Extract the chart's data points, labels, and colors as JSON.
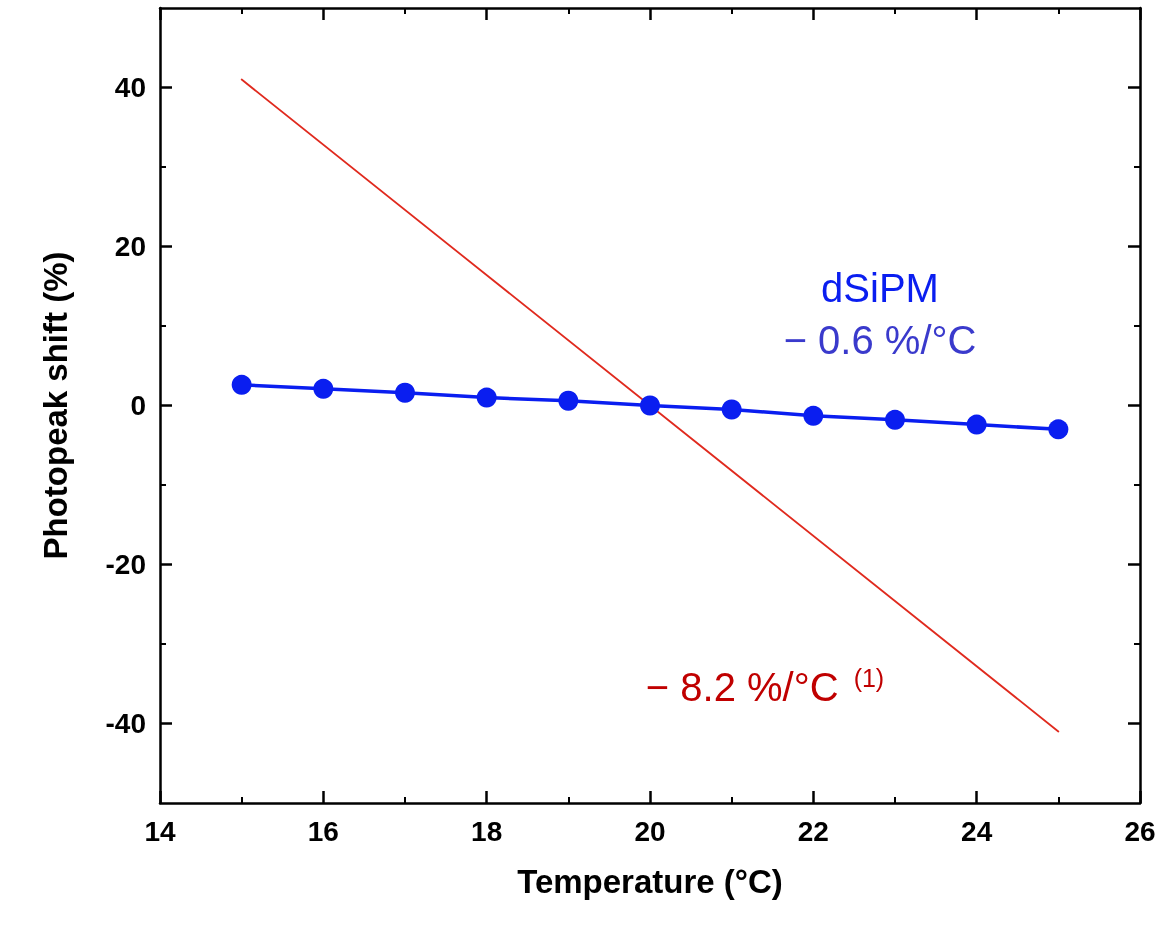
{
  "chart_data": {
    "type": "line",
    "xlabel": "Temperature (°C)",
    "ylabel": "Photopeak shift (%)",
    "xlim": [
      14,
      26
    ],
    "xticks": [
      14,
      16,
      18,
      20,
      22,
      24,
      26
    ],
    "ylim": [
      -50,
      50
    ],
    "yticks": [
      -40,
      -20,
      0,
      20,
      40
    ],
    "grid": false,
    "marker": "circle",
    "line_style": "solid",
    "annotations": [
      "− 0.6 %/°C",
      "− 8.2 %/°C $^{(1)}$"
    ],
    "series": [
      {
        "name": "dSiPM",
        "color": "#0a1ef0",
        "x": [
          15,
          16,
          17,
          18,
          19,
          20,
          21,
          22,
          23,
          24,
          25
        ],
        "values": [
          2.6,
          2.1,
          1.6,
          1.0,
          0.6,
          0,
          -0.5,
          -1.3,
          -1.8,
          -2.4,
          -3.0
        ]
      },
      {
        "color": "#e02a1e",
        "marker": "none",
        "x": [
          15,
          25
        ],
        "values": [
          41,
          -41
        ]
      }
    ]
  }
}
